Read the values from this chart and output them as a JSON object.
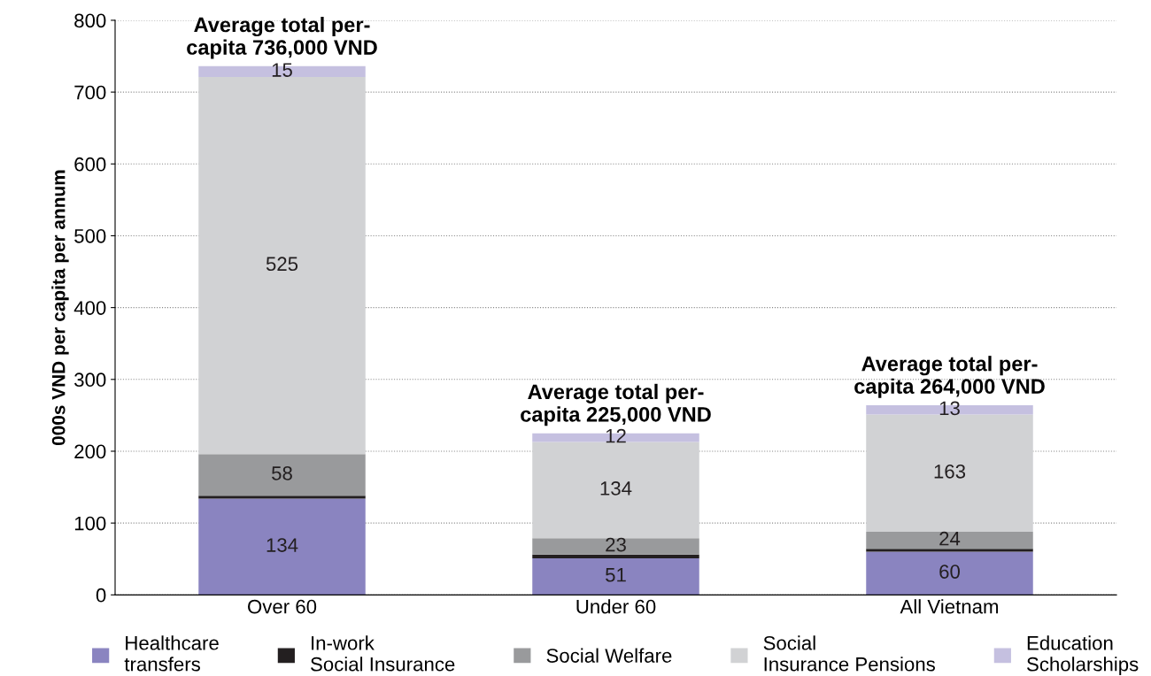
{
  "chart_data": {
    "type": "bar",
    "stacked": true,
    "ylabel": "000s VND per capita per annum",
    "categories": [
      "Over 60",
      "Under 60",
      "All Vietnam"
    ],
    "series": [
      {
        "name": "Healthcare transfers",
        "color": "#8a84c0",
        "values": [
          134,
          51,
          60
        ],
        "value_labels": [
          "134",
          "51",
          "60"
        ]
      },
      {
        "name": "In-work Social Insurance",
        "color": "#231f20",
        "values": [
          4,
          5,
          4
        ],
        "value_labels": [
          null,
          null,
          null
        ]
      },
      {
        "name": "Social Welfare",
        "color": "#999a9c",
        "values": [
          58,
          23,
          24
        ],
        "value_labels": [
          "58",
          "23",
          "24"
        ]
      },
      {
        "name": "Social Insurance Pensions",
        "color": "#d1d2d4",
        "values": [
          525,
          134,
          163
        ],
        "value_labels": [
          "525",
          "134",
          "163"
        ]
      },
      {
        "name": "Education Scholarships",
        "color": "#c5c0e0",
        "values": [
          15,
          12,
          13
        ],
        "value_labels": [
          "15",
          "12",
          "13"
        ]
      }
    ],
    "annotations": [
      {
        "text": "Average total per-\ncapita 736,000 VND",
        "x": "Over 60",
        "y": 736
      },
      {
        "text": "Average total per-\ncapita 225,000 VND",
        "x": "Under 60",
        "y": 225
      },
      {
        "text": "Average total per-\ncapita 264,000 VND",
        "x": "All Vietnam",
        "y": 264
      }
    ],
    "ylim": [
      0,
      800
    ],
    "yticks": [
      0,
      100,
      200,
      300,
      400,
      500,
      600,
      700,
      800
    ],
    "grid": "y",
    "legend": "bottom"
  }
}
